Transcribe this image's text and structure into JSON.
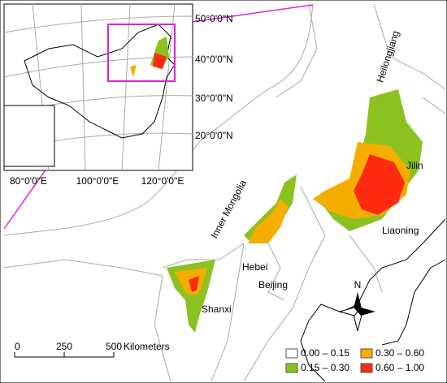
{
  "inset": {
    "lat_labels": [
      "50°0'0\"N",
      "40°0'0\"N",
      "30°0'0\"N",
      "20°0'0\"N"
    ],
    "lon_labels": [
      "80°0'0\"E",
      "100°0'0\"E",
      "120°0'0\"E"
    ]
  },
  "regions": [
    "Heilongjiang",
    "Jilin",
    "Inner Mongolia",
    "Liaoning",
    "Hebei",
    "Beijing",
    "Shanxi"
  ],
  "north": "N",
  "scale_bar": {
    "ticks": [
      0,
      250,
      500
    ],
    "unit": "Kilometers"
  },
  "legend": [
    {
      "label": "0.00 – 0.15",
      "color": "#ffffff"
    },
    {
      "label": "0.15 – 0.30",
      "color": "#8cc21f"
    },
    {
      "label": "0.30 – 0.60",
      "color": "#f5ad00"
    },
    {
      "label": "0.60 – 1.00",
      "color": "#ff2a12"
    }
  ]
}
